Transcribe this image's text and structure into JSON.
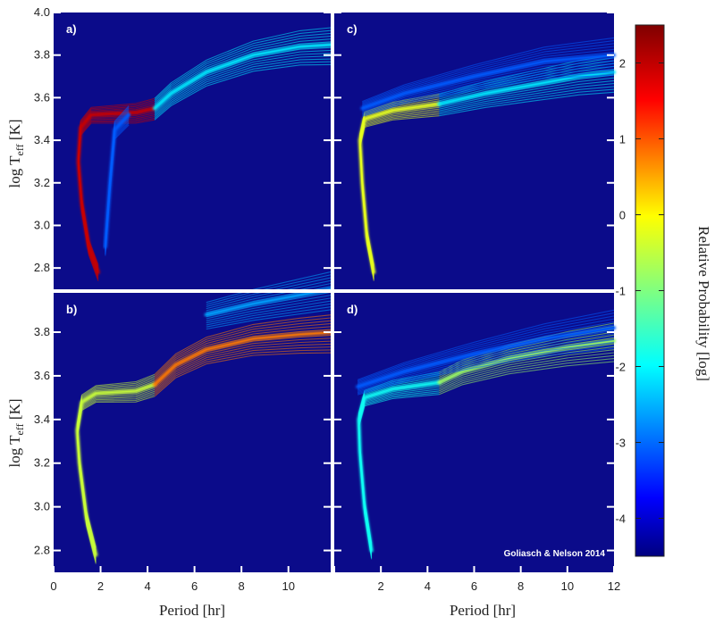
{
  "colors": {
    "background": "#0b0b8a",
    "divider": "#ffffff",
    "colormap": [
      "#00007f",
      "#0000ff",
      "#0080ff",
      "#00ffff",
      "#80ff80",
      "#ffff00",
      "#ff8000",
      "#ff0000",
      "#7f0000"
    ]
  },
  "credit": "Goliasch & Nelson 2014",
  "axes": {
    "xlabel": "Period [hr]",
    "ylabel_main": "log T",
    "ylabel_sub": "eff",
    "ylabel_unit": " [K]"
  },
  "colorbar": {
    "label": "Relative Probability [log]",
    "range": [
      -4.5,
      2.5
    ],
    "ticks": [
      "2",
      "1",
      "0",
      "-1",
      "-2",
      "-3",
      "-4"
    ],
    "tick_values": [
      2,
      1,
      0,
      -1,
      -2,
      -3,
      -4
    ]
  },
  "chart_data": [
    {
      "type": "heatmap",
      "panel": "a)",
      "xlim": [
        0,
        12
      ],
      "ylim": [
        2.7,
        4.0
      ],
      "x_ticks": [],
      "y_ticks": [
        "4.0",
        "3.8",
        "3.6",
        "3.4",
        "3.2",
        "3.0",
        "2.8"
      ],
      "tracks": [
        {
          "prob": 2.0,
          "points": [
            [
              1.9,
              2.78
            ],
            [
              1.5,
              2.9
            ],
            [
              1.2,
              3.1
            ],
            [
              1.05,
              3.3
            ],
            [
              1.15,
              3.46
            ],
            [
              1.6,
              3.52
            ],
            [
              3.5,
              3.53
            ],
            [
              4.3,
              3.55
            ]
          ]
        },
        {
          "prob": -2.0,
          "points": [
            [
              4.3,
              3.55
            ],
            [
              5.0,
              3.62
            ],
            [
              6.5,
              3.72
            ],
            [
              8.5,
              3.8
            ],
            [
              10.5,
              3.84
            ],
            [
              12,
              3.85
            ]
          ]
        },
        {
          "prob": -3.0,
          "points": [
            [
              2.2,
              2.9
            ],
            [
              2.4,
              3.2
            ],
            [
              2.6,
              3.45
            ],
            [
              3.2,
              3.52
            ]
          ]
        }
      ]
    },
    {
      "type": "heatmap",
      "panel": "b)",
      "xlim": [
        0,
        12
      ],
      "ylim": [
        2.7,
        4.0
      ],
      "x_ticks": [
        "0",
        "2",
        "4",
        "6",
        "8",
        "10"
      ],
      "y_ticks": [
        "3.8",
        "3.6",
        "3.4",
        "3.2",
        "3.0",
        "2.8"
      ],
      "tracks": [
        {
          "prob": -0.5,
          "points": [
            [
              1.8,
              2.78
            ],
            [
              1.4,
              2.95
            ],
            [
              1.1,
              3.2
            ],
            [
              1.0,
              3.35
            ],
            [
              1.2,
              3.48
            ],
            [
              1.8,
              3.52
            ],
            [
              3.5,
              3.53
            ],
            [
              4.3,
              3.56
            ]
          ]
        },
        {
          "prob": 0.8,
          "points": [
            [
              4.3,
              3.56
            ],
            [
              5.2,
              3.65
            ],
            [
              6.5,
              3.72
            ],
            [
              8.5,
              3.77
            ],
            [
              10.5,
              3.79
            ],
            [
              12,
              3.8
            ]
          ]
        },
        {
          "prob": -2.5,
          "points": [
            [
              6.5,
              3.88
            ],
            [
              8.5,
              3.93
            ],
            [
              10.5,
              3.97
            ],
            [
              12,
              4.0
            ]
          ]
        }
      ]
    },
    {
      "type": "heatmap",
      "panel": "c)",
      "xlim": [
        0,
        12
      ],
      "ylim": [
        2.7,
        4.0
      ],
      "x_ticks": [],
      "y_ticks": [],
      "tracks": [
        {
          "prob": -0.3,
          "points": [
            [
              1.7,
              2.78
            ],
            [
              1.4,
              2.95
            ],
            [
              1.2,
              3.2
            ],
            [
              1.1,
              3.4
            ],
            [
              1.3,
              3.5
            ],
            [
              2.5,
              3.54
            ],
            [
              4.5,
              3.57
            ]
          ]
        },
        {
          "prob": -2.0,
          "points": [
            [
              4.5,
              3.57
            ],
            [
              6.5,
              3.62
            ],
            [
              8.5,
              3.66
            ],
            [
              10.5,
              3.7
            ],
            [
              12,
              3.72
            ]
          ]
        },
        {
          "prob": -3.0,
          "points": [
            [
              1.2,
              3.55
            ],
            [
              3.0,
              3.62
            ],
            [
              6.0,
              3.7
            ],
            [
              9.0,
              3.77
            ],
            [
              12,
              3.8
            ]
          ]
        }
      ]
    },
    {
      "type": "heatmap",
      "panel": "d)",
      "xlim": [
        0,
        12
      ],
      "ylim": [
        2.7,
        4.0
      ],
      "x_ticks": [
        "2",
        "4",
        "6",
        "8",
        "10",
        "12"
      ],
      "y_ticks": [],
      "tracks": [
        {
          "prob": -1.8,
          "points": [
            [
              1.6,
              2.8
            ],
            [
              1.3,
              3.0
            ],
            [
              1.1,
              3.25
            ],
            [
              1.05,
              3.4
            ],
            [
              1.3,
              3.5
            ],
            [
              2.5,
              3.54
            ],
            [
              4.5,
              3.57
            ]
          ]
        },
        {
          "prob": -0.8,
          "points": [
            [
              4.5,
              3.57
            ],
            [
              5.5,
              3.62
            ],
            [
              7.5,
              3.68
            ],
            [
              10,
              3.73
            ],
            [
              12,
              3.76
            ]
          ]
        },
        {
          "prob": -3.0,
          "points": [
            [
              1.0,
              3.55
            ],
            [
              3.0,
              3.62
            ],
            [
              6.0,
              3.7
            ],
            [
              9.0,
              3.77
            ],
            [
              12,
              3.82
            ]
          ]
        }
      ]
    }
  ]
}
